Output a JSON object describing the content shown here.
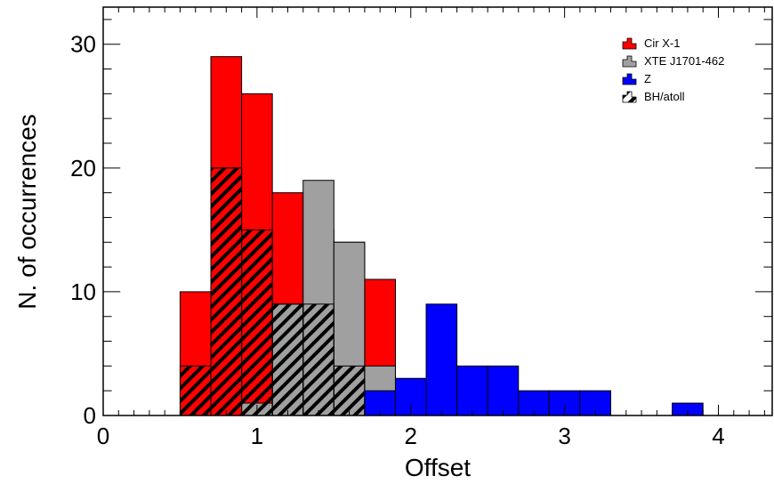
{
  "chart_data": {
    "type": "histogram",
    "xlabel": "Offset",
    "ylabel": "N. of occurrences",
    "xlim": [
      0,
      4.35
    ],
    "ylim": [
      0,
      33
    ],
    "x_ticks": [
      "0",
      "1",
      "2",
      "3",
      "4"
    ],
    "y_ticks": [
      "0",
      "10",
      "20",
      "30"
    ],
    "bin_width": 0.2,
    "legend_position": "top-right",
    "series": [
      {
        "name": "Cir X-1",
        "color": "#ff0000",
        "fill": "solid",
        "bins": [
          [
            0.5,
            10
          ],
          [
            0.7,
            29
          ],
          [
            0.9,
            26
          ],
          [
            1.1,
            18
          ],
          [
            1.3,
            15
          ],
          [
            1.5,
            14
          ],
          [
            1.7,
            11
          ]
        ]
      },
      {
        "name": "XTE J1701-462",
        "color": "#a0a0a0",
        "fill": "solid",
        "bins": [
          [
            0.9,
            1
          ],
          [
            1.1,
            9
          ],
          [
            1.3,
            19
          ],
          [
            1.5,
            14
          ],
          [
            1.7,
            4
          ]
        ]
      },
      {
        "name": "Z",
        "color": "#0000ff",
        "fill": "solid",
        "bins": [
          [
            1.7,
            2
          ],
          [
            1.9,
            3
          ],
          [
            2.1,
            9
          ],
          [
            2.3,
            4
          ],
          [
            2.5,
            4
          ],
          [
            2.7,
            2
          ],
          [
            2.9,
            2
          ],
          [
            3.1,
            2
          ],
          [
            3.7,
            1
          ]
        ]
      },
      {
        "name": "BH/atoll",
        "color": "#000000",
        "fill": "hatched",
        "bins": [
          [
            0.5,
            4
          ],
          [
            0.7,
            20
          ],
          [
            0.9,
            15
          ],
          [
            1.1,
            9
          ],
          [
            1.3,
            9
          ],
          [
            1.5,
            4
          ]
        ]
      }
    ]
  }
}
